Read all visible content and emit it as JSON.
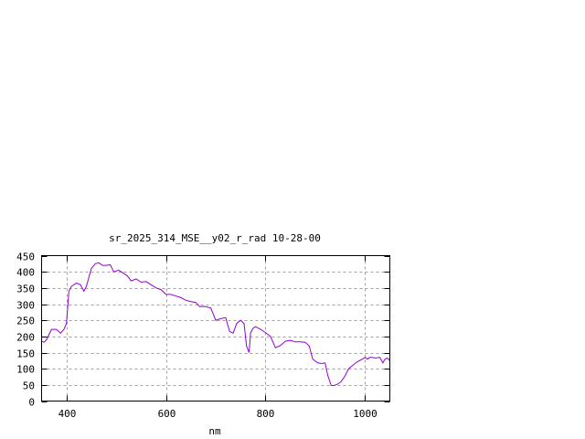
{
  "chart_data": {
    "type": "line",
    "title": "sr_2025_314_MSE__y02_r_rad 10-28-00",
    "xlabel": "nm",
    "ylabel": "",
    "xlim": [
      350,
      1050
    ],
    "ylim": [
      0,
      450
    ],
    "xticks": [
      400,
      600,
      800,
      1000
    ],
    "yticks": [
      0,
      50,
      100,
      150,
      200,
      250,
      300,
      350,
      400,
      450
    ],
    "grid": true,
    "legend": "none",
    "series": [
      {
        "color": "#9400d3",
        "x": [
          350,
          355,
          360,
          370,
          380,
          388,
          395,
          400,
          405,
          410,
          420,
          428,
          435,
          440,
          450,
          458,
          465,
          472,
          480,
          488,
          495,
          505,
          515,
          522,
          530,
          540,
          550,
          560,
          570,
          580,
          590,
          600,
          610,
          620,
          630,
          640,
          650,
          660,
          668,
          678,
          690,
          700,
          710,
          720,
          728,
          735,
          742,
          750,
          757,
          762,
          767,
          770,
          775,
          780,
          790,
          800,
          810,
          820,
          830,
          840,
          850,
          860,
          870,
          880,
          888,
          895,
          905,
          913,
          920,
          925,
          932,
          938,
          945,
          952,
          960,
          967,
          975,
          985,
          995,
          1000,
          1005,
          1010,
          1015,
          1020,
          1030,
          1036,
          1040,
          1045,
          1050
        ],
        "y": [
          185,
          182,
          190,
          222,
          222,
          210,
          222,
          240,
          340,
          355,
          365,
          360,
          340,
          355,
          410,
          425,
          428,
          420,
          420,
          422,
          400,
          405,
          395,
          388,
          372,
          378,
          368,
          370,
          360,
          350,
          345,
          330,
          330,
          325,
          320,
          312,
          308,
          305,
          292,
          293,
          288,
          250,
          255,
          258,
          215,
          210,
          240,
          250,
          240,
          170,
          150,
          210,
          225,
          230,
          222,
          212,
          200,
          165,
          172,
          185,
          188,
          183,
          183,
          182,
          170,
          130,
          118,
          116,
          118,
          80,
          48,
          48,
          52,
          60,
          78,
          100,
          110,
          122,
          130,
          135,
          130,
          135,
          135,
          133,
          135,
          118,
          130,
          133,
          125
        ]
      }
    ]
  }
}
